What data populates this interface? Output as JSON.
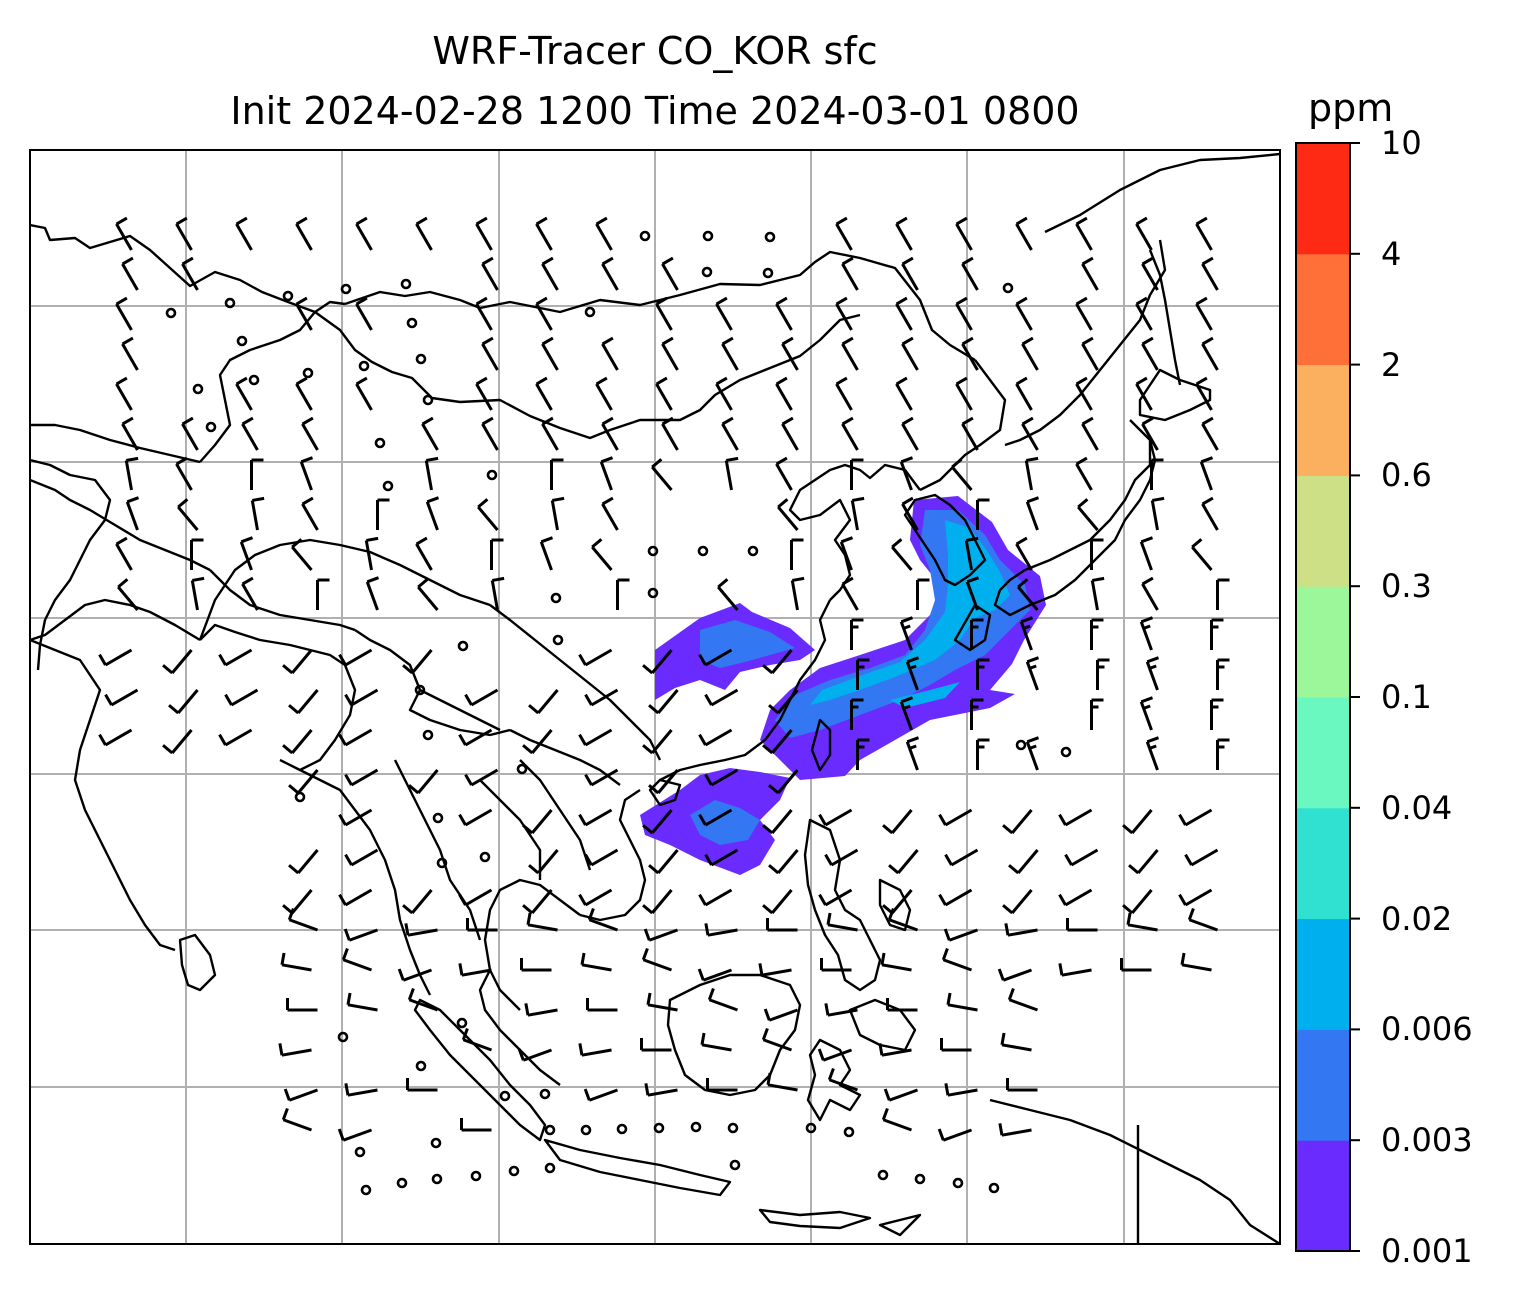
{
  "title": {
    "line1": "WRF-Tracer CO_KOR sfc",
    "line2": "Init 2024-02-28 1200 Time 2024-03-01 0800"
  },
  "colorbar": {
    "unit": "ppm",
    "levels": [
      "0.001",
      "0.003",
      "0.006",
      "0.02",
      "0.04",
      "0.1",
      "0.3",
      "0.6",
      "2",
      "4",
      "10"
    ],
    "colors": [
      "#6a2bff",
      "#3377f2",
      "#00b0ee",
      "#30e0d0",
      "#6af8c0",
      "#9bf79a",
      "#cde086",
      "#fbb060",
      "#ff7038",
      "#ff2a14"
    ]
  },
  "map": {
    "variable": "CO_KOR",
    "level": "sfc",
    "grid": "on",
    "coastline_color": "#000000",
    "plume_colors": [
      "#6a2bff",
      "#3377f2",
      "#00b0ee"
    ],
    "wind_symbols": "barbs"
  }
}
